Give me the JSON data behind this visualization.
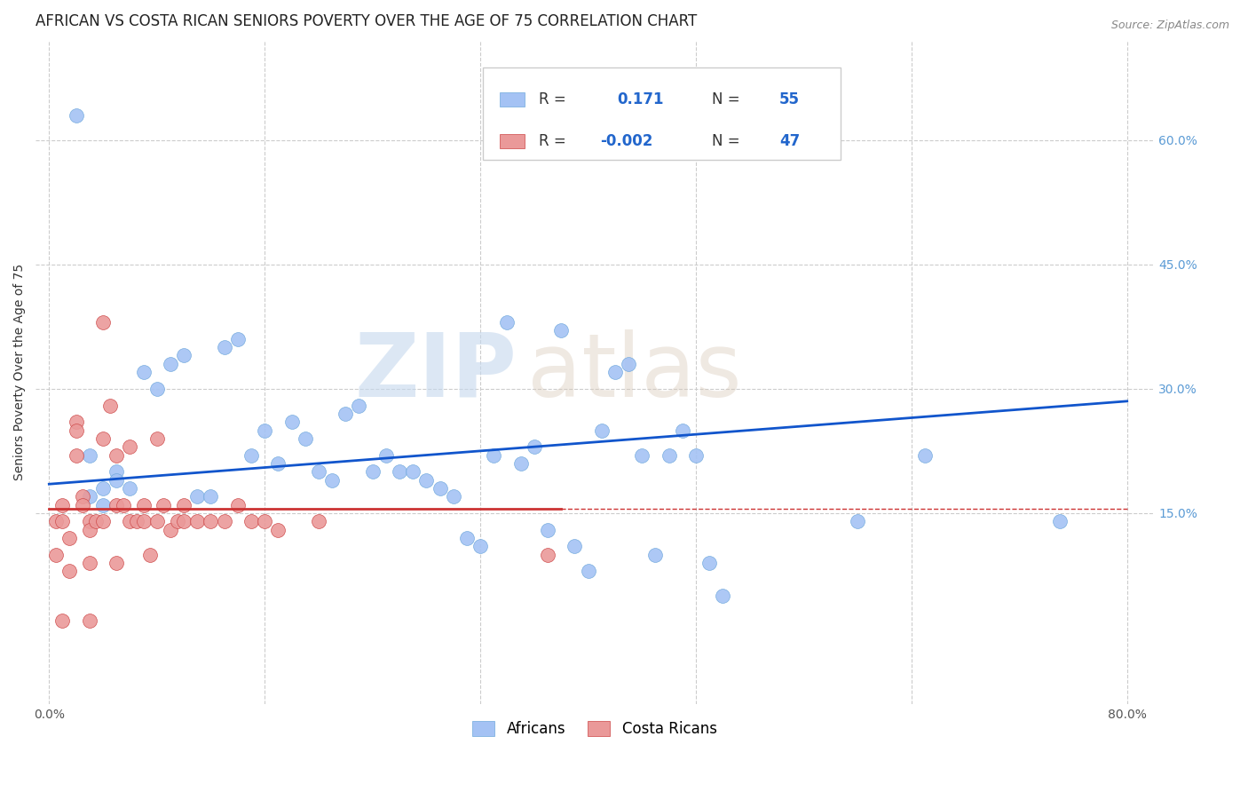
{
  "title": "AFRICAN VS COSTA RICAN SENIORS POVERTY OVER THE AGE OF 75 CORRELATION CHART",
  "source": "Source: ZipAtlas.com",
  "ylabel": "Seniors Poverty Over the Age of 75",
  "xlim": [
    -0.01,
    0.82
  ],
  "ylim": [
    -0.08,
    0.72
  ],
  "x_ticks": [
    0.0,
    0.16,
    0.32,
    0.48,
    0.64,
    0.8
  ],
  "x_tick_labels": [
    "0.0%",
    "",
    "",
    "",
    "",
    "80.0%"
  ],
  "y_tick_labels_right": [
    "60.0%",
    "45.0%",
    "30.0%",
    "15.0%"
  ],
  "y_tick_positions_right": [
    0.6,
    0.45,
    0.3,
    0.15
  ],
  "african_color": "#a4c2f4",
  "african_edge_color": "#6fa8dc",
  "costa_rican_color": "#ea9999",
  "costa_rican_edge_color": "#cc4444",
  "african_line_color": "#1155cc",
  "costa_rican_line_color": "#cc3333",
  "background_color": "#ffffff",
  "grid_color": "#cccccc",
  "watermark_zip": "ZIP",
  "watermark_atlas": "atlas",
  "title_fontsize": 12,
  "axis_label_fontsize": 10,
  "tick_fontsize": 10,
  "african_scatter_x": [
    0.02,
    0.04,
    0.05,
    0.05,
    0.06,
    0.07,
    0.08,
    0.09,
    0.1,
    0.11,
    0.12,
    0.13,
    0.14,
    0.15,
    0.16,
    0.17,
    0.18,
    0.19,
    0.2,
    0.21,
    0.22,
    0.23,
    0.24,
    0.25,
    0.26,
    0.27,
    0.28,
    0.29,
    0.3,
    0.31,
    0.32,
    0.33,
    0.34,
    0.35,
    0.36,
    0.37,
    0.38,
    0.39,
    0.4,
    0.41,
    0.42,
    0.43,
    0.44,
    0.45,
    0.46,
    0.47,
    0.48,
    0.49,
    0.5,
    0.6,
    0.65,
    0.75,
    0.03,
    0.03,
    0.04
  ],
  "african_scatter_y": [
    0.63,
    0.18,
    0.2,
    0.19,
    0.18,
    0.32,
    0.3,
    0.33,
    0.34,
    0.17,
    0.17,
    0.35,
    0.36,
    0.22,
    0.25,
    0.21,
    0.26,
    0.24,
    0.2,
    0.19,
    0.27,
    0.28,
    0.2,
    0.22,
    0.2,
    0.2,
    0.19,
    0.18,
    0.17,
    0.12,
    0.11,
    0.22,
    0.38,
    0.21,
    0.23,
    0.13,
    0.37,
    0.11,
    0.08,
    0.25,
    0.32,
    0.33,
    0.22,
    0.1,
    0.22,
    0.25,
    0.22,
    0.09,
    0.05,
    0.14,
    0.22,
    0.14,
    0.17,
    0.22,
    0.16
  ],
  "costa_rican_scatter_x": [
    0.005,
    0.005,
    0.01,
    0.01,
    0.01,
    0.015,
    0.015,
    0.02,
    0.02,
    0.02,
    0.025,
    0.025,
    0.03,
    0.03,
    0.03,
    0.03,
    0.035,
    0.04,
    0.04,
    0.04,
    0.045,
    0.05,
    0.05,
    0.05,
    0.055,
    0.06,
    0.06,
    0.065,
    0.07,
    0.07,
    0.075,
    0.08,
    0.08,
    0.085,
    0.09,
    0.095,
    0.1,
    0.1,
    0.11,
    0.12,
    0.13,
    0.14,
    0.15,
    0.16,
    0.17,
    0.2,
    0.37
  ],
  "costa_rican_scatter_y": [
    0.14,
    0.1,
    0.16,
    0.14,
    0.02,
    0.12,
    0.08,
    0.22,
    0.26,
    0.25,
    0.17,
    0.16,
    0.14,
    0.13,
    0.09,
    0.02,
    0.14,
    0.38,
    0.24,
    0.14,
    0.28,
    0.22,
    0.16,
    0.09,
    0.16,
    0.14,
    0.23,
    0.14,
    0.14,
    0.16,
    0.1,
    0.14,
    0.24,
    0.16,
    0.13,
    0.14,
    0.16,
    0.14,
    0.14,
    0.14,
    0.14,
    0.16,
    0.14,
    0.14,
    0.13,
    0.14,
    0.1
  ],
  "african_line_x": [
    0.0,
    0.8
  ],
  "african_line_y": [
    0.185,
    0.285
  ],
  "costa_rican_line_x": [
    0.0,
    0.38
  ],
  "costa_rican_line_y": [
    0.155,
    0.155
  ]
}
